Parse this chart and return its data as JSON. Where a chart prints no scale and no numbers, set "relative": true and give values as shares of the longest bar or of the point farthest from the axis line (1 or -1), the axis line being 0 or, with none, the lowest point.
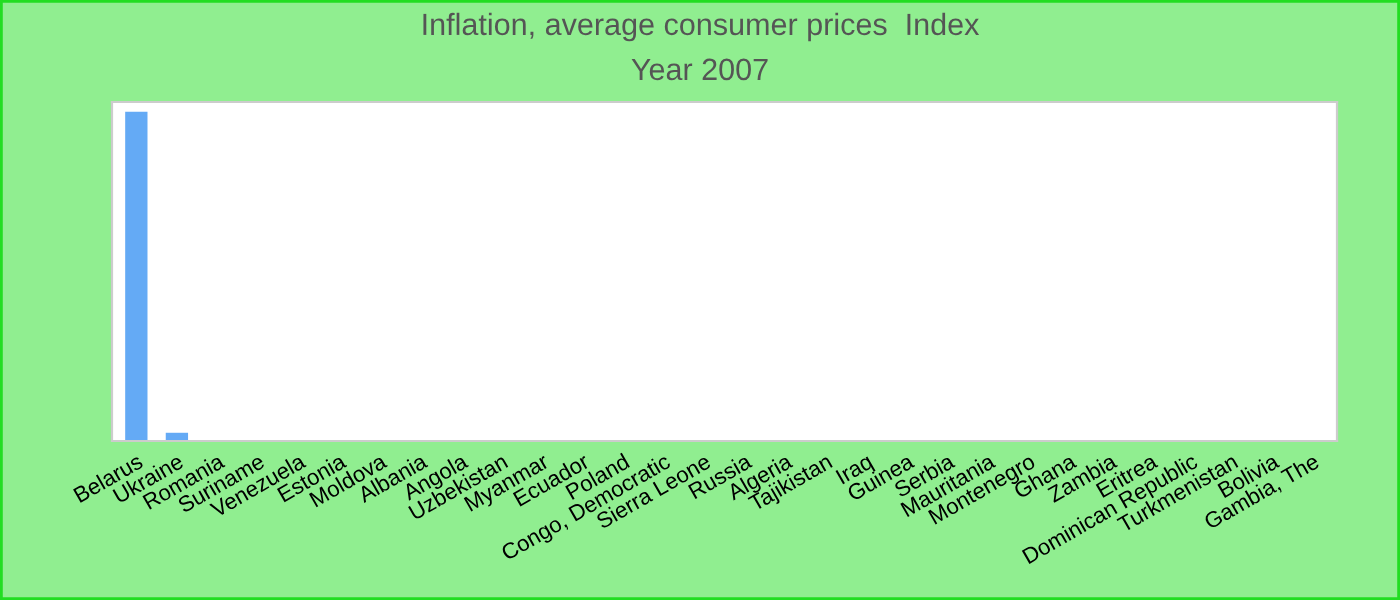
{
  "chart_data": {
    "type": "bar",
    "title": "Inflation, average consumer prices  Index",
    "subtitle": "Year 2007",
    "relative": true,
    "categories": [
      "Belarus",
      "Ukraine",
      "Romania",
      "Suriname",
      "Venezuela",
      "Estonia",
      "Moldova",
      "Albania",
      "Angola",
      "Uzbekistan",
      "Myanmar",
      "Ecuador",
      "Poland",
      "Congo, Democratic",
      "Sierra Leone",
      "Russia",
      "Algeria",
      "Tajikistan",
      "Iraq",
      "Guinea",
      "Serbia",
      "Mauritania",
      "Montenegro",
      "Ghana",
      "Zambia",
      "Eritrea",
      "Dominican Republic",
      "Turkmenistan",
      "Bolivia",
      "Gambia, The"
    ],
    "values": [
      1,
      0.025,
      0,
      0,
      0,
      0,
      0,
      0,
      0,
      0,
      0,
      0,
      0,
      0,
      0,
      0,
      0,
      0,
      0,
      0,
      0,
      0,
      0,
      0,
      0,
      0,
      0,
      0,
      0,
      0
    ],
    "color": "#64aaf5",
    "grid": false,
    "legend": false
  }
}
